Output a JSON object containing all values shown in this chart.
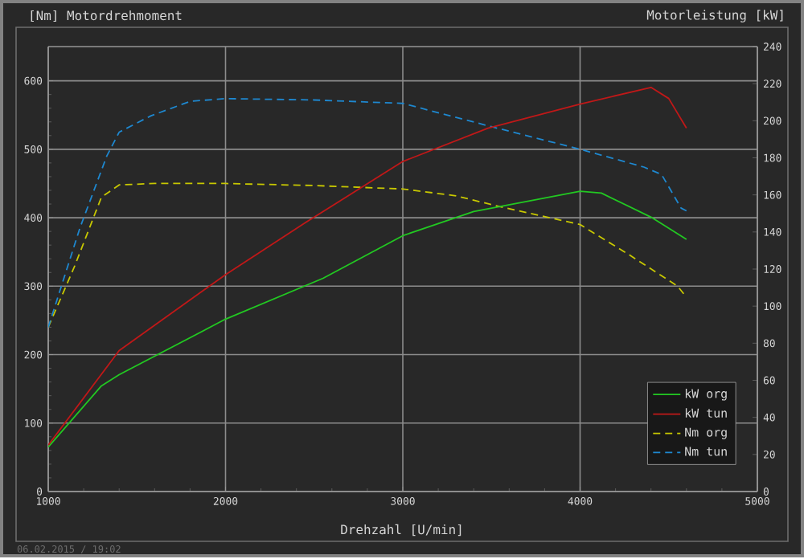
{
  "chart_data": {
    "type": "line",
    "ylabel": "[Nm] Motordrehmoment",
    "y2label": "Motorleistung [kW]",
    "xlabel": "Drehzahl [U/min]",
    "annotations": [
      "06.02.2015 / 19:02"
    ],
    "xlim": [
      1000,
      5000
    ],
    "xticks": [
      1000,
      2000,
      3000,
      4000,
      5000
    ],
    "ylim": [
      0,
      650
    ],
    "yticks": [
      0,
      100,
      200,
      300,
      400,
      500,
      600
    ],
    "y2lim": [
      0,
      240
    ],
    "y2ticks": [
      0,
      20,
      40,
      60,
      80,
      100,
      120,
      140,
      160,
      180,
      200,
      220,
      240
    ],
    "grid": true,
    "legend": "bottom right",
    "series": [
      {
        "name": "Nm org",
        "color": "#c8c800",
        "line_style": "dashed",
        "axis": "y",
        "x": [
          1000,
          1150,
          1300,
          1400,
          1600,
          2000,
          2500,
          3000,
          3300,
          3550,
          4000,
          4270,
          4550,
          4600
        ],
        "values": [
          240,
          330,
          430,
          448,
          450,
          450,
          447,
          442,
          432,
          416,
          390,
          347,
          300,
          284
        ]
      },
      {
        "name": "Nm tun",
        "color": "#1e88d0",
        "line_style": "dashed",
        "axis": "y",
        "x": [
          1000,
          1180,
          1330,
          1400,
          1580,
          1800,
          2000,
          2500,
          3000,
          3500,
          4000,
          4360,
          4460,
          4570,
          4600
        ],
        "values": [
          240,
          386,
          490,
          525,
          549,
          570,
          574,
          572,
          567,
          533,
          500,
          474,
          463,
          414,
          410
        ]
      },
      {
        "name": "kW org",
        "color": "#22c822",
        "line_style": "solid",
        "axis": "y2",
        "x": [
          1000,
          1300,
          1400,
          2000,
          2550,
          3000,
          3400,
          4000,
          4120,
          4400,
          4600
        ],
        "values": [
          24,
          57,
          63,
          93,
          115,
          138,
          151,
          162,
          161,
          148,
          136
        ]
      },
      {
        "name": "kW tun",
        "color": "#c01818",
        "line_style": "solid",
        "axis": "y2",
        "x": [
          1000,
          1400,
          2000,
          2450,
          3000,
          3480,
          4000,
          4400,
          4500,
          4600
        ],
        "values": [
          25,
          76,
          117,
          145,
          178,
          196,
          209,
          218,
          212,
          196
        ]
      }
    ]
  }
}
